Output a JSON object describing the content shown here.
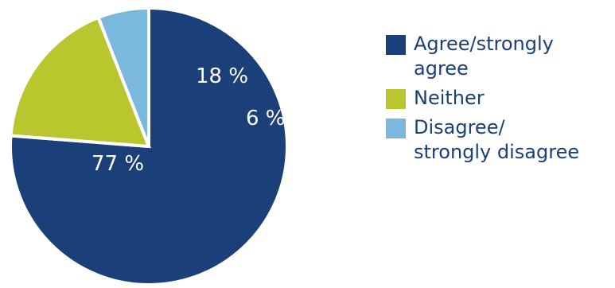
{
  "chart_data": {
    "type": "pie",
    "slices": [
      {
        "label": "Agree/strongly agree",
        "legend_lines": [
          "Agree/strongly",
          "agree"
        ],
        "value": 77,
        "display": "77 %",
        "color": "#1b3f78"
      },
      {
        "label": "Neither",
        "legend_lines": [
          "Neither"
        ],
        "value": 18,
        "display": "18 %",
        "color": "#b9c62d"
      },
      {
        "label": "Disagree/strongly disagree",
        "legend_lines": [
          "Disagree/",
          "strongly disagree"
        ],
        "value": 6,
        "display": "6 %",
        "color": "#7ab8dc"
      }
    ],
    "start": "12 o'clock",
    "direction": "clockwise",
    "legend": "right"
  }
}
